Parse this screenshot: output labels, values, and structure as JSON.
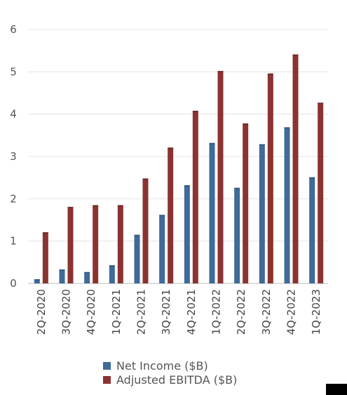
{
  "chart_data": {
    "type": "bar",
    "title": "",
    "xlabel": "",
    "ylabel": "",
    "ylim": [
      0,
      6
    ],
    "yticks": [
      0,
      1,
      2,
      3,
      4,
      5,
      6
    ],
    "grid": true,
    "legend_position": "bottom",
    "categories": [
      "2Q-2020",
      "3Q-2020",
      "4Q-2020",
      "1Q-2021",
      "2Q-2021",
      "3Q-2021",
      "4Q-2021",
      "1Q-2022",
      "2Q-2022",
      "3Q-2022",
      "4Q-2022",
      "1Q-2023"
    ],
    "series": [
      {
        "name": "Net Income ($B)",
        "color": "#3f6a9a",
        "values": [
          0.1,
          0.33,
          0.27,
          0.43,
          1.15,
          1.62,
          2.32,
          3.32,
          2.26,
          3.29,
          3.69,
          2.51
        ]
      },
      {
        "name": "Adjusted EBITDA ($B)",
        "color": "#8b3331",
        "values": [
          1.21,
          1.81,
          1.85,
          1.85,
          2.48,
          3.21,
          4.08,
          5.02,
          3.78,
          4.96,
          5.41,
          4.27
        ]
      }
    ]
  }
}
